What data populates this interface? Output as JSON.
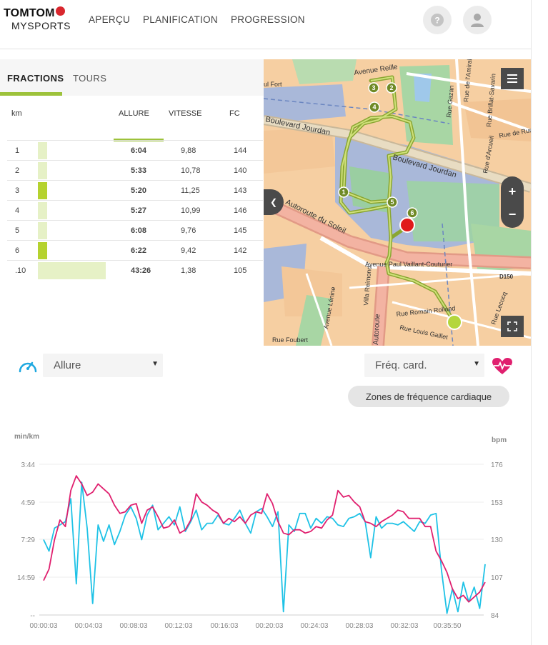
{
  "header": {
    "logo_top": "TOMTOM",
    "logo_bottom": "MYSPORTS",
    "nav": [
      "APERÇU",
      "PLANIFICATION",
      "PROGRESSION"
    ]
  },
  "splits": {
    "tabs": [
      "FRACTIONS",
      "TOURS"
    ],
    "columns": [
      "km",
      "ALLURE",
      "VITESSE",
      "FC"
    ],
    "rows": [
      {
        "km": "1",
        "allure": "6:04",
        "vitesse": "9,88",
        "fc": "144",
        "bar": 0.09,
        "highlight": false
      },
      {
        "km": "2",
        "allure": "5:33",
        "vitesse": "10,78",
        "fc": "140",
        "bar": 0.09,
        "highlight": false
      },
      {
        "km": "3",
        "allure": "5:20",
        "vitesse": "11,25",
        "fc": "143",
        "bar": 0.09,
        "highlight": true
      },
      {
        "km": "4",
        "allure": "5:27",
        "vitesse": "10,99",
        "fc": "146",
        "bar": 0.09,
        "highlight": false
      },
      {
        "km": "5",
        "allure": "6:08",
        "vitesse": "9,76",
        "fc": "145",
        "bar": 0.09,
        "highlight": false
      },
      {
        "km": "6",
        "allure": "6:22",
        "vitesse": "9,42",
        "fc": "142",
        "bar": 0.09,
        "highlight": true
      },
      {
        "km": ".10",
        "allure": "43:26",
        "vitesse": "1,38",
        "fc": "105",
        "bar": 0.68,
        "highlight": false
      }
    ]
  },
  "map": {
    "labels": [
      "Avenue Reille",
      "Rue de l'Amiral Mo",
      "Rue Brillat-Savarin",
      "Rue Gazan",
      "Rue de Run",
      "Rue d'Arcueil",
      "ul Fort",
      "Boulevard Jourdan",
      "Boulevard Jourdan",
      "Autoroute du Soleil",
      "Avenue Paul Vaillant-Couturier",
      "D150",
      "Villa Reimond",
      "Autoroute",
      "Avenue Lénine",
      "Rue Romain Rolland",
      "Rue Louis Gaillet",
      "Rue Foubert",
      "Rue Lecocq"
    ],
    "markers": [
      "1",
      "2",
      "3",
      "4",
      "5",
      "6"
    ],
    "zoom_in": "+",
    "zoom_out": "−"
  },
  "controls": {
    "left_select": "Allure",
    "right_select": "Fréq. card.",
    "zones_button": "Zones de fréquence cardiaque"
  },
  "chart_data": {
    "type": "line",
    "left_unit": "min/km",
    "right_unit": "bpm",
    "left_ticks": [
      "3:44",
      "4:59",
      "7:29",
      "14:59",
      "--"
    ],
    "right_ticks": [
      "176",
      "153",
      "130",
      "107",
      "84"
    ],
    "x_ticks": [
      "00:00:03",
      "00:04:03",
      "00:08:03",
      "00:12:03",
      "00:16:03",
      "00:20:03",
      "00:24:03",
      "00:28:03",
      "00:32:03",
      "00:35:50"
    ],
    "series": [
      {
        "color": "#e0206f",
        "values": [
          105,
          112,
          130,
          142,
          138,
          160,
          169,
          164,
          157,
          159,
          164,
          161,
          158,
          151,
          146,
          147,
          151,
          152,
          140,
          148,
          150,
          144,
          137,
          138,
          142,
          134,
          136,
          142,
          158,
          153,
          151,
          148,
          146,
          140,
          143,
          141,
          144,
          140,
          145,
          147,
          146,
          158,
          152,
          141,
          134,
          133,
          136,
          136,
          134,
          135,
          138,
          137,
          142,
          145,
          160,
          156,
          157,
          153,
          150,
          141,
          140,
          138,
          141,
          143,
          145,
          148,
          147,
          143,
          143,
          143,
          138,
          138,
          123,
          117,
          110,
          100,
          94,
          96,
          92,
          95,
          98,
          104
        ]
      },
      {
        "color": "#1ec2e6",
        "values": [
          130,
          123,
          137,
          139,
          141,
          155,
          103,
          165,
          137,
          91,
          139,
          129,
          139,
          127,
          135,
          145,
          150,
          143,
          130,
          145,
          151,
          136,
          140,
          144,
          139,
          150,
          135,
          141,
          148,
          136,
          140,
          140,
          145,
          140,
          139,
          143,
          148,
          140,
          134,
          147,
          149,
          144,
          138,
          147,
          86,
          139,
          135,
          146,
          146,
          137,
          143,
          140,
          144,
          143,
          139,
          138,
          143,
          144,
          146,
          141,
          119,
          144,
          137,
          140,
          140,
          139,
          141,
          138,
          135,
          141,
          140,
          145,
          146,
          111,
          85,
          100,
          86,
          104,
          92,
          101,
          88,
          115
        ]
      }
    ]
  }
}
